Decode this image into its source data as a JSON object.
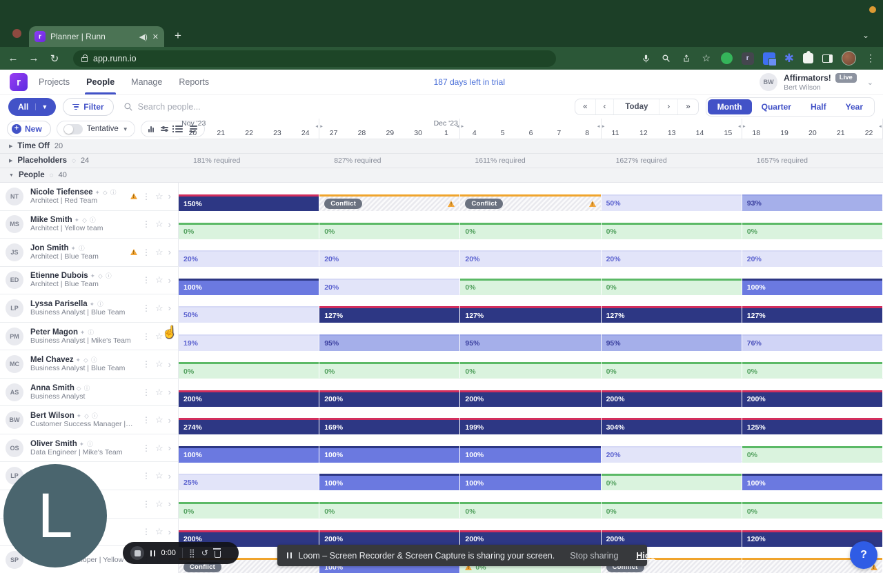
{
  "browser": {
    "tab_title": "Planner | Runn",
    "url": "app.runn.io",
    "favicon_letter": "r",
    "theme_color": "#2b5737"
  },
  "app": {
    "logo_letter": "r",
    "nav": [
      "Projects",
      "People",
      "Manage",
      "Reports"
    ],
    "active_nav": "People",
    "trial_text": "187 days left in trial",
    "account": {
      "initials": "BW",
      "org": "Affirmators!",
      "badge": "Live",
      "user": "Bert Wilson"
    },
    "filterbar": {
      "all_label": "All",
      "filter_label": "Filter",
      "search_placeholder": "Search people...",
      "pager": [
        "«",
        "‹",
        "Today",
        "›",
        "»"
      ],
      "views": [
        "Month",
        "Quarter",
        "Half",
        "Year"
      ],
      "active_view": "Month"
    },
    "controls": {
      "new_label": "New",
      "tentative_label": "Tentative"
    }
  },
  "colors": {
    "accent": "#4252c7",
    "over_bar": "#2d3784",
    "over_top": "#d22e5d",
    "full_bar": "#6b79e0",
    "zero_bar": "#daf3de",
    "zero_top": "#5bb966",
    "conflict_top": "#f0a42c",
    "trial_link": "#4a6fd8"
  },
  "timeline": {
    "months": [
      {
        "label": "Nov '23",
        "pos_pct": 0.4
      },
      {
        "label": "Dec '23",
        "pos_pct": 36.2
      }
    ],
    "weeks": [
      {
        "days": [
          "20",
          "21",
          "22",
          "23",
          "24"
        ],
        "required": "181% required"
      },
      {
        "days": [
          "27",
          "28",
          "29",
          "30",
          "1"
        ],
        "required": "827% required"
      },
      {
        "days": [
          "4",
          "5",
          "6",
          "7",
          "8"
        ],
        "required": "1611% required"
      },
      {
        "days": [
          "11",
          "12",
          "13",
          "14",
          "15"
        ],
        "required": "1627% required"
      },
      {
        "days": [
          "18",
          "19",
          "20",
          "21",
          "22"
        ],
        "required": "1657% required"
      }
    ]
  },
  "groups": [
    {
      "label": "Time Off",
      "count": "20",
      "expanded": false,
      "has_spinner": false
    },
    {
      "label": "Placeholders",
      "count": "24",
      "expanded": false,
      "has_spinner": true
    },
    {
      "label": "People",
      "count": "40",
      "expanded": true,
      "has_spinner": true
    }
  ],
  "conflict_label": "Conflict",
  "people": [
    {
      "initials": "NT",
      "name": "Nicole Tiefensee",
      "icons": "tag,shield,info",
      "role": "Architect | Red Team",
      "warn": true,
      "segments": [
        {
          "v": "150%",
          "t": "over"
        },
        {
          "t": "conflict",
          "pill": true,
          "warn": true
        },
        {
          "t": "conflict",
          "pill": true,
          "warn": true
        },
        {
          "v": "50%",
          "t": "low"
        },
        {
          "v": "93%",
          "t": "high"
        }
      ]
    },
    {
      "initials": "MS",
      "name": "Mike Smith",
      "icons": "tag,shield,info",
      "role": "Architect | Yellow team",
      "warn": false,
      "segments": [
        {
          "v": "0%",
          "t": "zero"
        },
        {
          "v": "0%",
          "t": "zero"
        },
        {
          "v": "0%",
          "t": "zero"
        },
        {
          "v": "0%",
          "t": "zero"
        },
        {
          "v": "0%",
          "t": "zero"
        }
      ]
    },
    {
      "initials": "JS",
      "name": "Jon Smith",
      "icons": "tag,info",
      "role": "Architect | Blue Team",
      "warn": true,
      "segments": [
        {
          "v": "20%",
          "t": "low"
        },
        {
          "v": "20%",
          "t": "low"
        },
        {
          "v": "20%",
          "t": "low"
        },
        {
          "v": "20%",
          "t": "low"
        },
        {
          "v": "20%",
          "t": "low"
        }
      ]
    },
    {
      "initials": "ED",
      "name": "Etienne Dubois",
      "icons": "tag,shield,info",
      "role": "Architect | Blue Team",
      "warn": false,
      "segments": [
        {
          "v": "100%",
          "t": "full"
        },
        {
          "v": "20%",
          "t": "low"
        },
        {
          "v": "0%",
          "t": "zero"
        },
        {
          "v": "0%",
          "t": "zero"
        },
        {
          "v": "100%",
          "t": "full"
        }
      ]
    },
    {
      "initials": "LP",
      "name": "Lyssa Parisella",
      "icons": "tag,info",
      "role": "Business Analyst | Blue Team",
      "warn": false,
      "segments": [
        {
          "v": "50%",
          "t": "low"
        },
        {
          "v": "127%",
          "t": "over"
        },
        {
          "v": "127%",
          "t": "over"
        },
        {
          "v": "127%",
          "t": "over"
        },
        {
          "v": "127%",
          "t": "over"
        }
      ]
    },
    {
      "initials": "PM",
      "name": "Peter Magon",
      "icons": "tag,info",
      "role": "Business Analyst | Mike's Team",
      "warn": false,
      "segments": [
        {
          "v": "19%",
          "t": "low"
        },
        {
          "v": "95%",
          "t": "high"
        },
        {
          "v": "95%",
          "t": "high"
        },
        {
          "v": "95%",
          "t": "high"
        },
        {
          "v": "76%",
          "t": "mid"
        }
      ]
    },
    {
      "initials": "MC",
      "name": "Mel Chavez",
      "icons": "tag,shield,info",
      "role": "Business Analyst | Blue Team",
      "warn": false,
      "segments": [
        {
          "v": "0%",
          "t": "zero"
        },
        {
          "v": "0%",
          "t": "zero"
        },
        {
          "v": "0%",
          "t": "zero"
        },
        {
          "v": "0%",
          "t": "zero"
        },
        {
          "v": "0%",
          "t": "zero"
        }
      ]
    },
    {
      "initials": "AS",
      "name": "Anna Smith",
      "icons": "shield,info",
      "role": "Business Analyst",
      "warn": false,
      "segments": [
        {
          "v": "200%",
          "t": "over"
        },
        {
          "v": "200%",
          "t": "over"
        },
        {
          "v": "200%",
          "t": "over"
        },
        {
          "v": "200%",
          "t": "over"
        },
        {
          "v": "200%",
          "t": "over"
        }
      ]
    },
    {
      "initials": "BW",
      "name": "Bert Wilson",
      "icons": "tag,shield,info",
      "role": "Customer Success Manager | Blue Te…",
      "warn": false,
      "segments": [
        {
          "v": "274%",
          "t": "over"
        },
        {
          "v": "169%",
          "t": "over"
        },
        {
          "v": "199%",
          "t": "over"
        },
        {
          "v": "304%",
          "t": "over"
        },
        {
          "v": "125%",
          "t": "over"
        }
      ]
    },
    {
      "initials": "OS",
      "name": "Oliver Smith",
      "icons": "tag,info",
      "role": "Data Engineer | Mike's Team",
      "warn": false,
      "segments": [
        {
          "v": "100%",
          "t": "full"
        },
        {
          "v": "100%",
          "t": "full"
        },
        {
          "v": "100%",
          "t": "full"
        },
        {
          "v": "20%",
          "t": "low"
        },
        {
          "v": "0%",
          "t": "zero"
        }
      ]
    },
    {
      "initials": "LP",
      "name": "",
      "icons": "shield,info",
      "role": "",
      "warn": false,
      "segments": [
        {
          "v": "25%",
          "t": "low"
        },
        {
          "v": "100%",
          "t": "full"
        },
        {
          "v": "100%",
          "t": "full"
        },
        {
          "v": "0%",
          "t": "zero"
        },
        {
          "v": "100%",
          "t": "full"
        }
      ]
    },
    {
      "initials": "",
      "name": "",
      "icons": "",
      "role": "",
      "warn": false,
      "segments": [
        {
          "v": "0%",
          "t": "zero"
        },
        {
          "v": "0%",
          "t": "zero"
        },
        {
          "v": "0%",
          "t": "zero"
        },
        {
          "v": "0%",
          "t": "zero"
        },
        {
          "v": "0%",
          "t": "zero"
        }
      ]
    },
    {
      "initials": "",
      "name": "",
      "icons": "",
      "role": "",
      "warn": false,
      "segments": [
        {
          "v": "200%",
          "t": "over"
        },
        {
          "v": "200%",
          "t": "over"
        },
        {
          "v": "200%",
          "t": "over"
        },
        {
          "v": "200%",
          "t": "over"
        },
        {
          "v": "120%",
          "t": "over"
        }
      ]
    },
    {
      "initials": "SP",
      "name": "",
      "icons": "",
      "role": "Full Stack Developer | Yellow team",
      "warn": false,
      "segments": [
        {
          "t": "conflict",
          "pill": true
        },
        {
          "v": "100%",
          "t": "full"
        },
        {
          "v": "0%",
          "t": "zero",
          "warn": true
        },
        {
          "t": "conflict",
          "pill": true
        },
        {
          "t": "conflict",
          "warn": true
        }
      ]
    }
  ],
  "loom": {
    "letter": "L",
    "time": "0:00",
    "banner_text": "Loom – Screen Recorder & Screen Capture is sharing your screen.",
    "stop_sharing": "Stop sharing",
    "hide": "Hide"
  }
}
